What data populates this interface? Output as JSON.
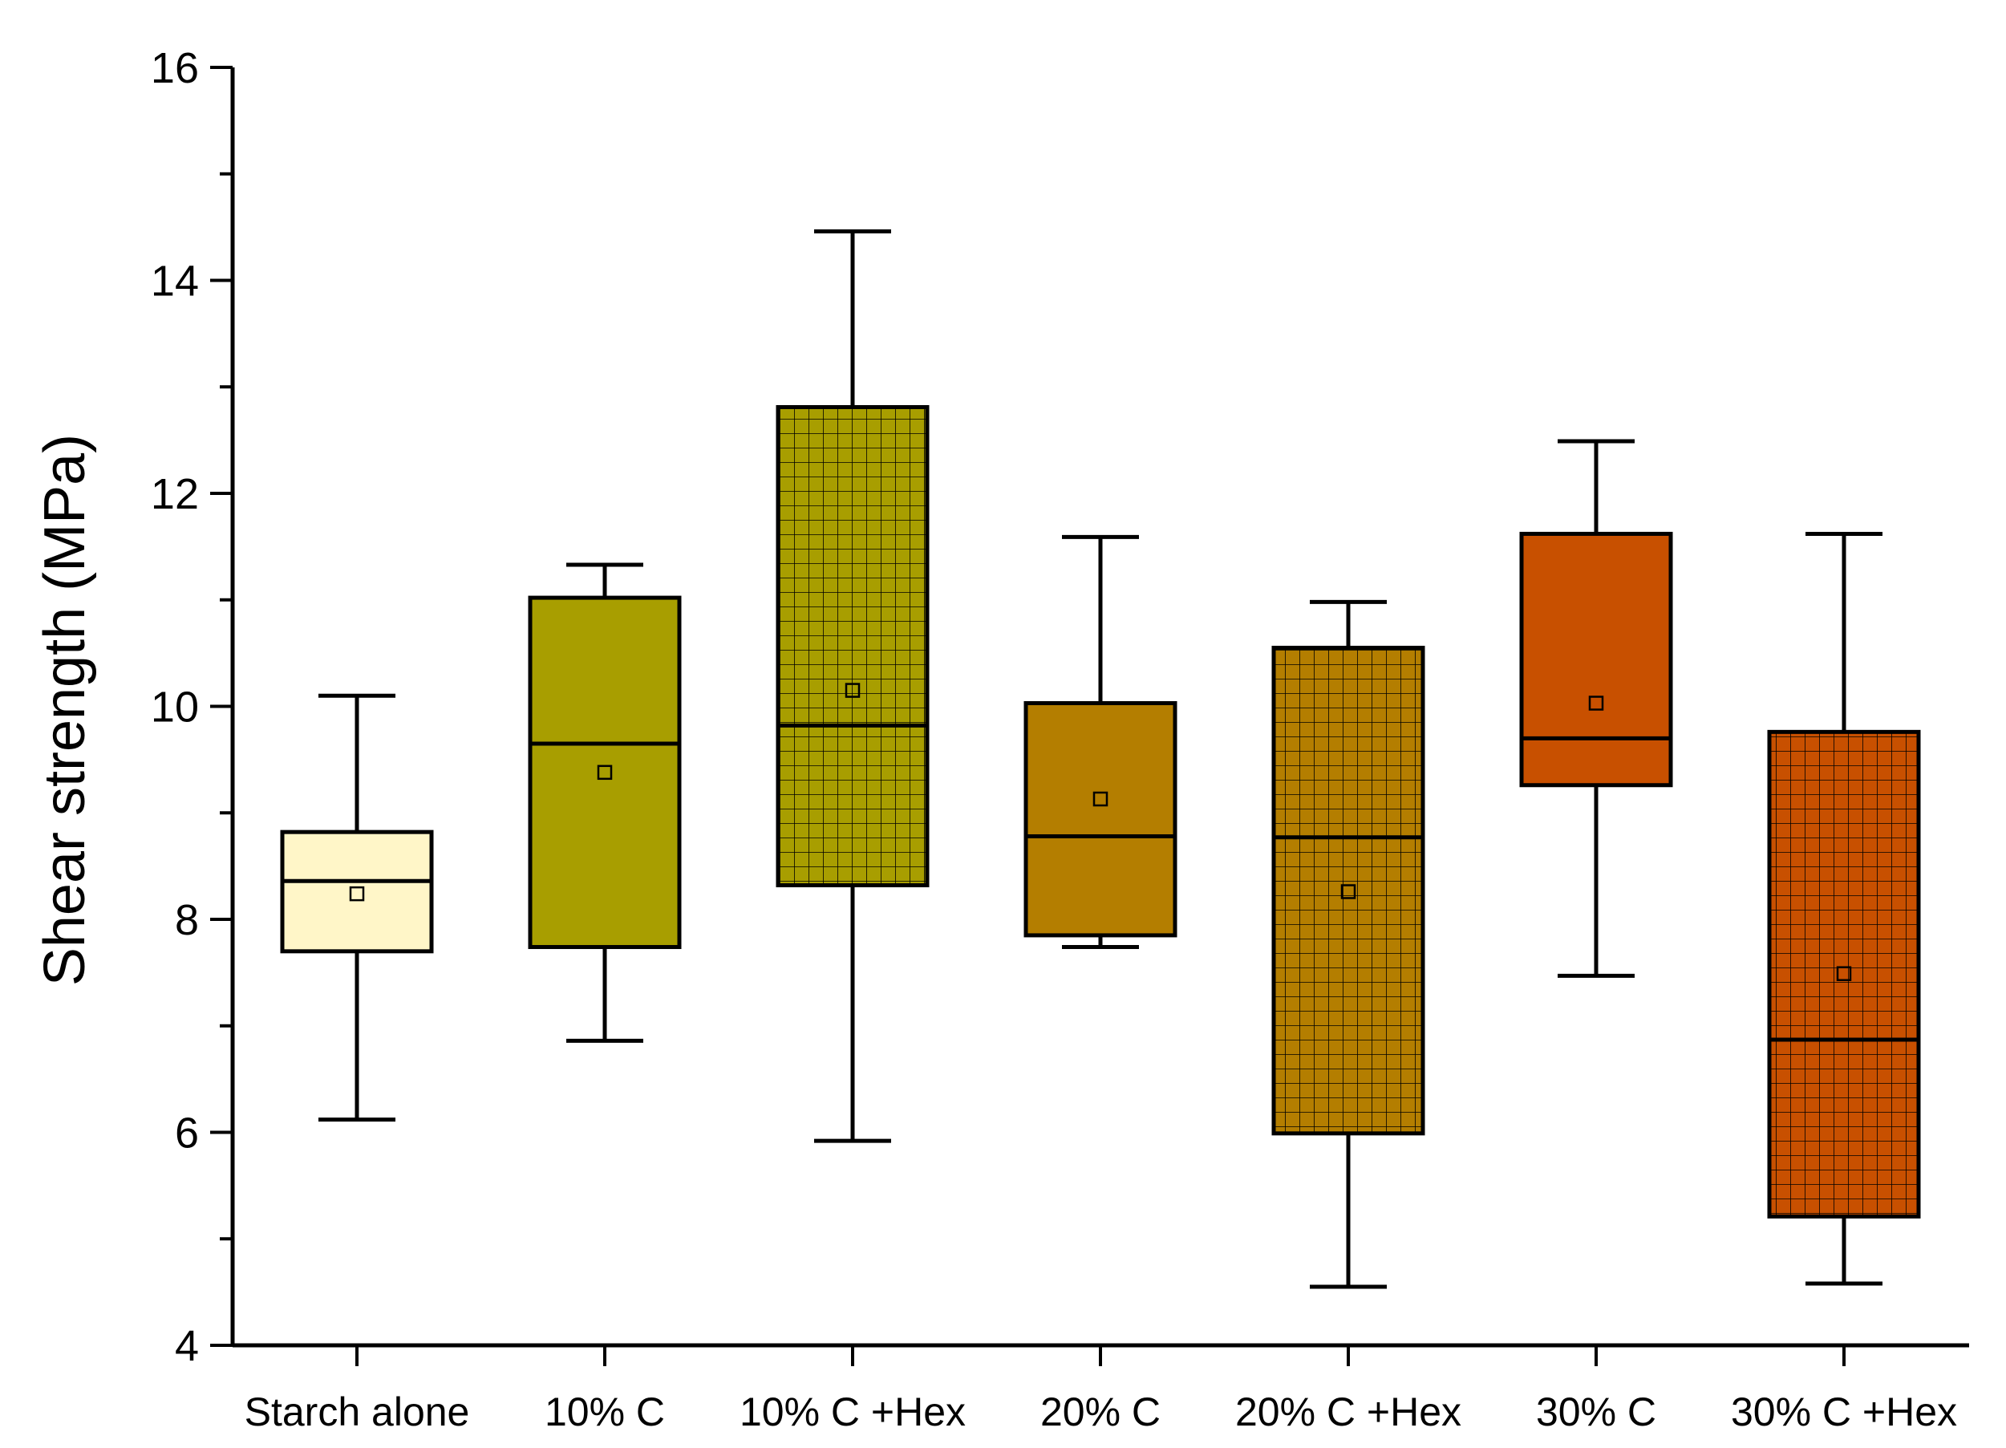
{
  "chart_data": {
    "type": "box",
    "title": "",
    "xlabel": "",
    "ylabel": "Shear strength (MPa)",
    "ylim": [
      4,
      16
    ],
    "yticks": [
      4,
      6,
      8,
      10,
      12,
      14,
      16
    ],
    "ytick_labels": [
      "4",
      "6",
      "8",
      "10",
      "12",
      "14",
      "16"
    ],
    "grid": false,
    "categories": [
      "Starch alone",
      "10% C",
      "10% C +Hex",
      "20% C",
      "20% C +Hex",
      "30% C",
      "30% C +Hex"
    ],
    "boxes": [
      {
        "name": "Starch alone",
        "whisker_low": 6.12,
        "q1": 7.7,
        "median": 8.36,
        "q3": 8.82,
        "whisker_high": 10.1,
        "mean": 8.24,
        "color": "#FFF6C8",
        "hatched": false
      },
      {
        "name": "10% C",
        "whisker_low": 6.86,
        "q1": 7.74,
        "median": 9.65,
        "q3": 11.02,
        "whisker_high": 11.33,
        "mean": 9.38,
        "color": "#A89E00",
        "hatched": false
      },
      {
        "name": "10% C +Hex",
        "whisker_low": 5.92,
        "q1": 8.32,
        "median": 9.82,
        "q3": 12.81,
        "whisker_high": 14.46,
        "mean": 10.15,
        "color": "#A89E00",
        "hatched": true
      },
      {
        "name": "20% C",
        "whisker_low": 7.74,
        "q1": 7.85,
        "median": 8.78,
        "q3": 10.03,
        "whisker_high": 11.59,
        "mean": 9.13,
        "color": "#B47E00",
        "hatched": false
      },
      {
        "name": "20% C +Hex",
        "whisker_low": 4.55,
        "q1": 5.99,
        "median": 8.77,
        "q3": 10.55,
        "whisker_high": 10.98,
        "mean": 8.26,
        "color": "#B47E00",
        "hatched": true
      },
      {
        "name": "30% C",
        "whisker_low": 7.47,
        "q1": 9.26,
        "median": 9.7,
        "q3": 11.62,
        "whisker_high": 12.49,
        "mean": 10.03,
        "color": "#C85000",
        "hatched": false
      },
      {
        "name": "30% C +Hex",
        "whisker_low": 4.58,
        "q1": 5.21,
        "median": 6.87,
        "q3": 9.76,
        "whisker_high": 11.62,
        "mean": 7.49,
        "color": "#C85000",
        "hatched": true
      }
    ]
  }
}
